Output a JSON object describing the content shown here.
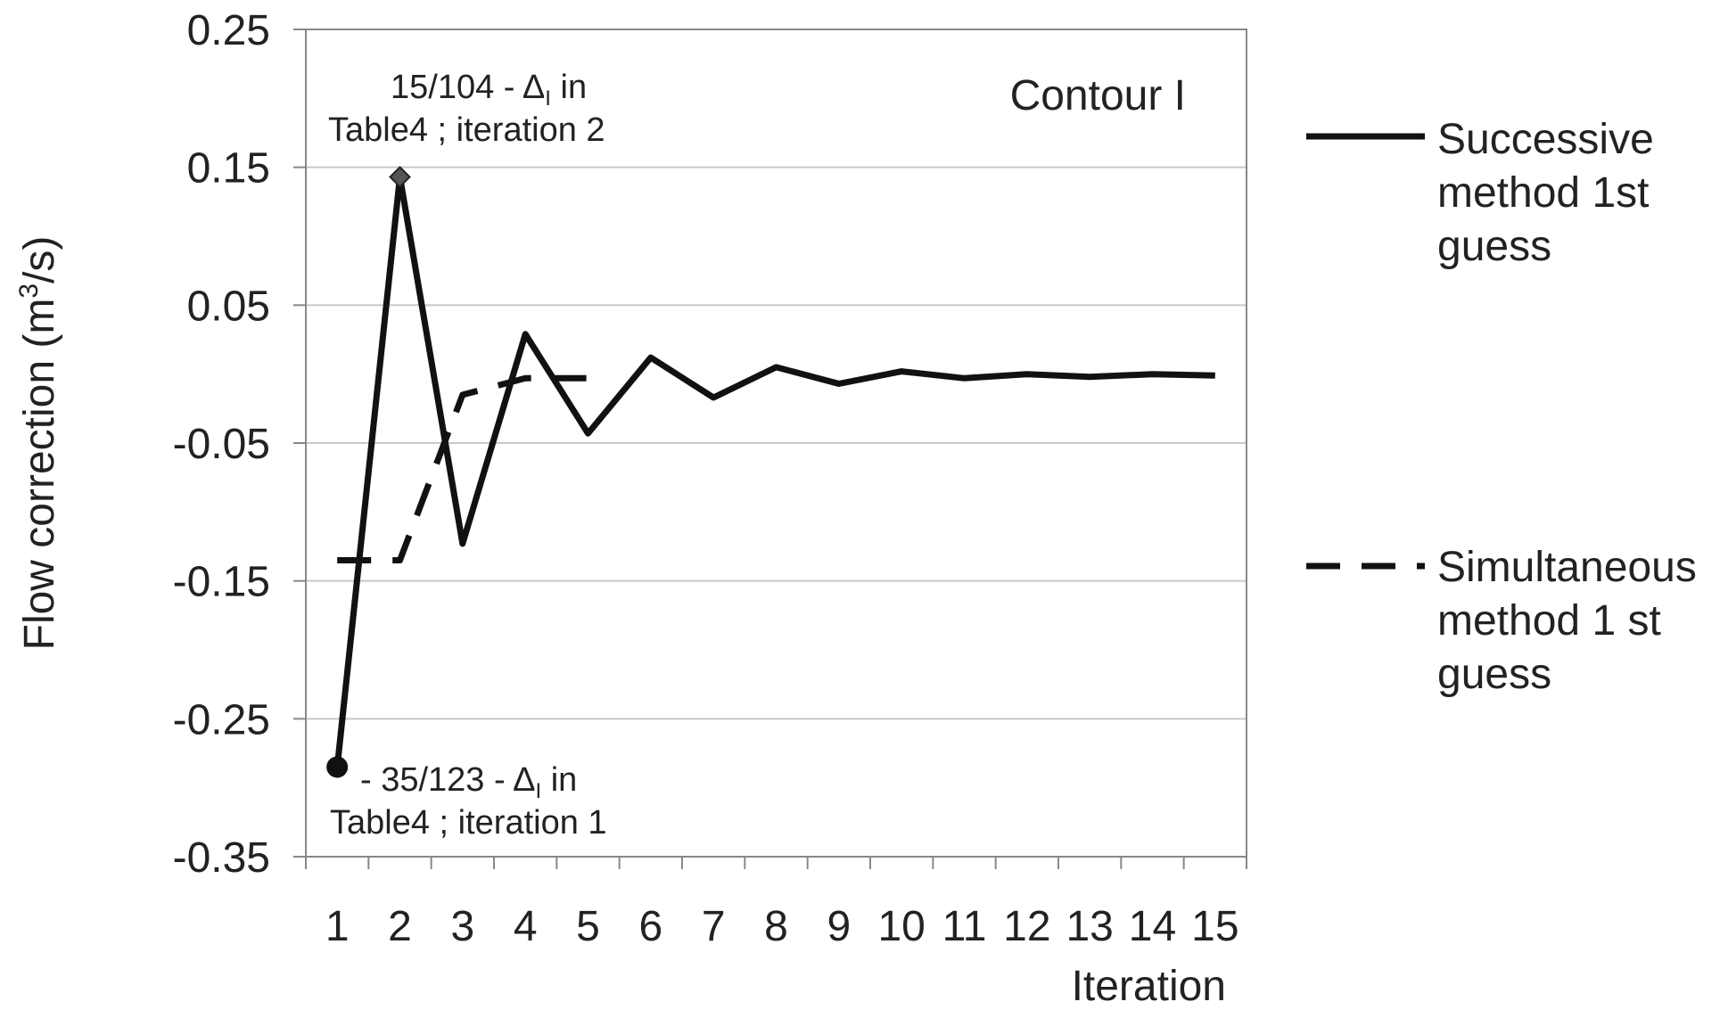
{
  "chart_data": {
    "type": "line",
    "title": "",
    "xlabel": "Iteration",
    "ylabel": "Flow correction (m",
    "ylabel_sup": "3",
    "ylabel_end": "/s)",
    "ylim": [
      -0.35,
      0.25
    ],
    "yticks": [
      "0.25",
      "0.15",
      "0.05",
      "-0.05",
      "-0.15",
      "-0.25",
      "-0.35"
    ],
    "ytick_values": [
      0.25,
      0.15,
      0.05,
      -0.05,
      -0.15,
      -0.25,
      -0.35
    ],
    "xticks": [
      "1",
      "2",
      "3",
      "4",
      "5",
      "6",
      "7",
      "8",
      "9",
      "10",
      "11",
      "12",
      "13",
      "14",
      "15"
    ],
    "grid": true,
    "legend_placement": "right",
    "series": [
      {
        "name": "Successive method 1st guess",
        "name_lines": [
          "Successive",
          "method 1st",
          "guess"
        ],
        "style": "solid",
        "x": [
          1,
          2,
          3,
          4,
          5,
          6,
          7,
          8,
          9,
          10,
          11,
          12,
          13,
          14,
          15
        ],
        "y": [
          -0.285,
          0.143,
          -0.123,
          0.029,
          -0.043,
          0.012,
          -0.017,
          0.005,
          -0.007,
          0.002,
          -0.003,
          0.0,
          -0.002,
          0.0,
          -0.001
        ]
      },
      {
        "name": "Simultaneous method 1 st guess",
        "name_lines": [
          "Simultaneous",
          "method 1 st",
          "guess"
        ],
        "style": "dashed",
        "x": [
          1,
          2,
          3,
          4,
          5
        ],
        "y": [
          -0.135,
          -0.135,
          -0.015,
          -0.003,
          -0.003
        ]
      }
    ],
    "annotations": [
      {
        "lines": [
          "15/104 - Δ",
          "Table4 ;  iteration 2"
        ],
        "sub": "I",
        "suffix": " in",
        "x": 2,
        "y": 0.143,
        "marker": "diamond"
      },
      {
        "lines": [
          "-  35/123 - Δ",
          "Table4 ;  iteration 1"
        ],
        "sub": "I",
        "suffix": " in",
        "x": 1,
        "y": -0.285,
        "marker": "circle"
      }
    ],
    "plot_label": "Contour I"
  }
}
